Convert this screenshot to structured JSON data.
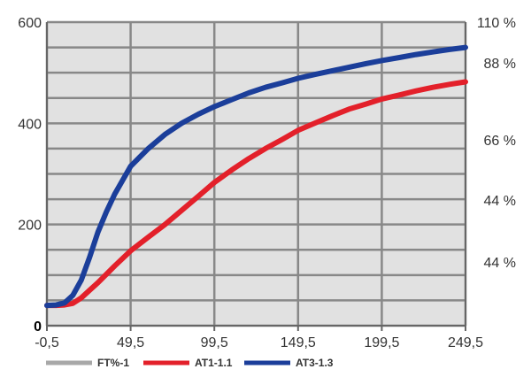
{
  "chart_data": {
    "type": "line",
    "x_ticks": [
      "-0,5",
      "49,5",
      "99,5",
      "149,5",
      "199,5",
      "249,5"
    ],
    "y_left_ticks": [
      "0",
      "200",
      "400",
      "600"
    ],
    "y_right_ticks": [
      "110 %",
      "88 %",
      "66 %",
      "44 %",
      "44 %"
    ],
    "xlim": [
      -0.5,
      249.5
    ],
    "ylim": [
      0,
      600
    ],
    "grid": true,
    "legend_position": "bottom",
    "series": [
      {
        "name": "FT%-1",
        "color": "#a8a8a8",
        "x": [],
        "y": []
      },
      {
        "name": "AT1-1.1",
        "color": "#e3202a",
        "x": [
          -0.5,
          5,
          10,
          15,
          20,
          25,
          30,
          40,
          49.5,
          60,
          70,
          80,
          90,
          99.5,
          110,
          120,
          130,
          140,
          149.5,
          160,
          170,
          180,
          190,
          199.5,
          210,
          220,
          230,
          240,
          249.5
        ],
        "y": [
          40,
          40,
          41,
          44,
          55,
          70,
          85,
          118,
          148,
          175,
          200,
          228,
          256,
          283,
          308,
          330,
          350,
          368,
          386,
          401,
          415,
          428,
          438,
          448,
          456,
          464,
          471,
          477,
          482
        ]
      },
      {
        "name": "AT3-1.3",
        "color": "#1b3e9a",
        "x": [
          -0.5,
          5,
          10,
          15,
          20,
          25,
          30,
          35,
          40,
          49.5,
          60,
          70,
          80,
          90,
          99.5,
          110,
          120,
          130,
          140,
          149.5,
          160,
          170,
          180,
          190,
          199.5,
          210,
          220,
          230,
          240,
          249.5
        ],
        "y": [
          40,
          41,
          45,
          60,
          90,
          135,
          185,
          225,
          260,
          315,
          350,
          378,
          400,
          418,
          433,
          447,
          460,
          471,
          480,
          489,
          497,
          504,
          511,
          518,
          524,
          530,
          536,
          541,
          546,
          550
        ]
      }
    ]
  }
}
